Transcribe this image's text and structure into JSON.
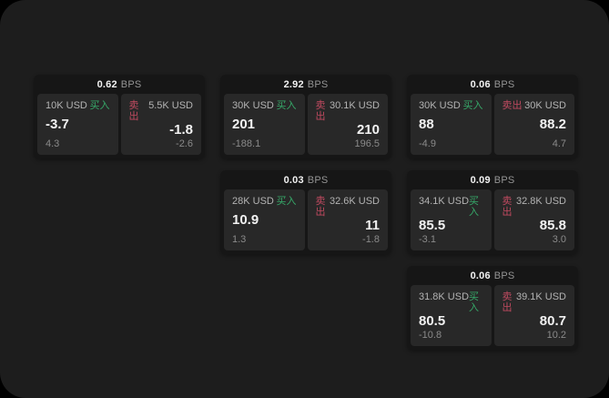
{
  "labels": {
    "bps_unit": "BPS",
    "buy": "买入",
    "sell": "卖出"
  },
  "colors": {
    "background": "#000000",
    "window_bg": "#1d1d1d",
    "card_bg": "#161616",
    "panel_bg": "#282828",
    "text_primary": "#f2f2f2",
    "text_muted": "#b3b3b3",
    "text_dim": "#8a8a8a",
    "buy_green": "#36a969",
    "sell_red": "#c04a60"
  },
  "cards": [
    {
      "bps": "0.62",
      "buy": {
        "amount": "10K USD",
        "value": "-3.7",
        "sub": "4.3"
      },
      "sell": {
        "amount": "5.5K USD",
        "value": "-1.8",
        "sub": "-2.6"
      }
    },
    {
      "bps": "2.92",
      "buy": {
        "amount": "30K USD",
        "value": "201",
        "sub": "-188.1"
      },
      "sell": {
        "amount": "30.1K USD",
        "value": "210",
        "sub": "196.5"
      }
    },
    {
      "bps": "0.06",
      "buy": {
        "amount": "30K USD",
        "value": "88",
        "sub": "-4.9"
      },
      "sell": {
        "amount": "30K USD",
        "value": "88.2",
        "sub": "4.7"
      }
    },
    {
      "bps": "0.03",
      "buy": {
        "amount": "28K USD",
        "value": "10.9",
        "sub": "1.3"
      },
      "sell": {
        "amount": "32.6K USD",
        "value": "11",
        "sub": "-1.8"
      }
    },
    {
      "bps": "0.09",
      "buy": {
        "amount": "34.1K USD",
        "value": "85.5",
        "sub": "-3.1"
      },
      "sell": {
        "amount": "32.8K USD",
        "value": "85.8",
        "sub": "3.0"
      }
    },
    {
      "bps": "0.06",
      "buy": {
        "amount": "31.8K USD",
        "value": "80.5",
        "sub": "-10.8"
      },
      "sell": {
        "amount": "39.1K USD",
        "value": "80.7",
        "sub": "10.2"
      }
    }
  ]
}
